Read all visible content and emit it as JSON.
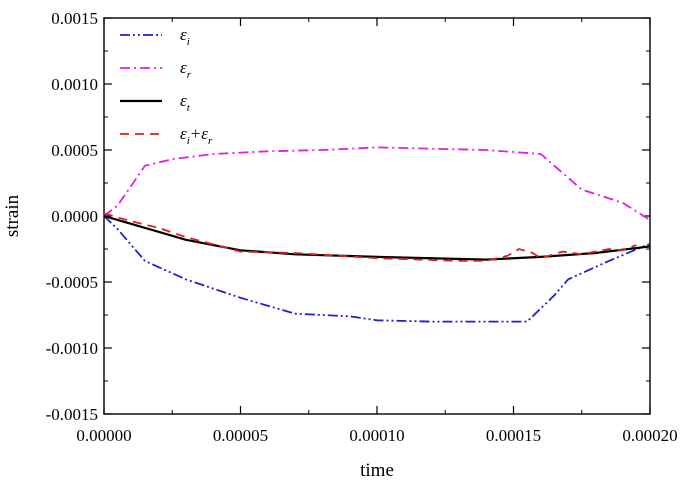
{
  "chart_data": {
    "type": "line",
    "xlabel": "time",
    "ylabel": "strain",
    "xlim": [
      0,
      0.0002
    ],
    "ylim": [
      -0.0015,
      0.0015
    ],
    "x_ticks": [
      "0.00000",
      "0.00005",
      "0.00010",
      "0.00015",
      "0.00020"
    ],
    "y_ticks": [
      "0.0015",
      "0.0010",
      "0.0005",
      "0.0000",
      "-0.0005",
      "-0.0010",
      "-0.0015"
    ],
    "grid": false,
    "legend_position": "top-left",
    "series": [
      {
        "name": "εi",
        "color": "#1f1fd6",
        "dash": "dash-dot-dot",
        "points": [
          [
            0,
            0
          ],
          [
            5e-06,
            -0.0001
          ],
          [
            1.5e-05,
            -0.00034
          ],
          [
            3e-05,
            -0.00048
          ],
          [
            5e-05,
            -0.00062
          ],
          [
            7e-05,
            -0.00074
          ],
          [
            9e-05,
            -0.00076
          ],
          [
            0.0001,
            -0.00079
          ],
          [
            0.00012,
            -0.0008
          ],
          [
            0.000155,
            -0.0008
          ],
          [
            0.000165,
            -0.0006
          ],
          [
            0.00017,
            -0.00048
          ],
          [
            0.000185,
            -0.00034
          ],
          [
            0.0002,
            -0.00021
          ]
        ]
      },
      {
        "name": "εr",
        "color": "#e020e0",
        "dash": "dash-dot",
        "points": [
          [
            0,
            0
          ],
          [
            5e-06,
            8e-05
          ],
          [
            1.5e-05,
            0.00038
          ],
          [
            2.5e-05,
            0.00043
          ],
          [
            4e-05,
            0.00047
          ],
          [
            6e-05,
            0.00049
          ],
          [
            8e-05,
            0.0005
          ],
          [
            0.0001,
            0.00052
          ],
          [
            0.00012,
            0.00051
          ],
          [
            0.00014,
            0.0005
          ],
          [
            0.00016,
            0.00047
          ],
          [
            0.000175,
            0.0002
          ],
          [
            0.00019,
            0.0001
          ],
          [
            0.0002,
            -3e-05
          ]
        ]
      },
      {
        "name": "εt",
        "color": "#000000",
        "dash": "solid",
        "points": [
          [
            0,
            0
          ],
          [
            1e-05,
            -6e-05
          ],
          [
            2e-05,
            -0.00012
          ],
          [
            3e-05,
            -0.00018
          ],
          [
            5e-05,
            -0.00026
          ],
          [
            7e-05,
            -0.00029
          ],
          [
            0.0001,
            -0.00031
          ],
          [
            0.00014,
            -0.00033
          ],
          [
            0.00016,
            -0.00031
          ],
          [
            0.00018,
            -0.00028
          ],
          [
            0.0002,
            -0.00023
          ]
        ]
      },
      {
        "name": "εi+εr",
        "color": "#e02020",
        "dash": "dash",
        "points": [
          [
            0,
            2e-05
          ],
          [
            1e-05,
            -4e-05
          ],
          [
            2e-05,
            -9e-05
          ],
          [
            3e-05,
            -0.00016
          ],
          [
            5e-05,
            -0.00027
          ],
          [
            7e-05,
            -0.00028
          ],
          [
            0.0001,
            -0.00032
          ],
          [
            0.00013,
            -0.00034
          ],
          [
            0.00014,
            -0.00034
          ],
          [
            0.000148,
            -0.0003
          ],
          [
            0.000152,
            -0.00025
          ],
          [
            0.000157,
            -0.00028
          ],
          [
            0.00016,
            -0.00032
          ],
          [
            0.000168,
            -0.00027
          ],
          [
            0.000175,
            -0.00029
          ],
          [
            0.000185,
            -0.00025
          ],
          [
            0.00019,
            -0.00026
          ],
          [
            0.000195,
            -0.00022
          ]
        ]
      }
    ]
  }
}
